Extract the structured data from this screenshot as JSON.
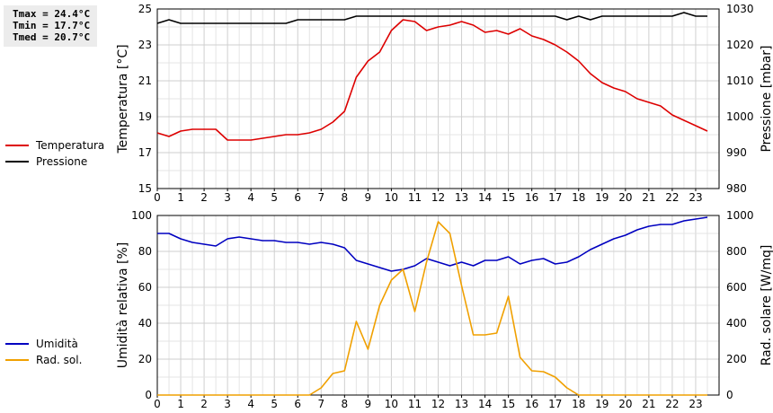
{
  "stats": {
    "tmax": "Tmax = 24.4°C",
    "tmin": "Tmin = 17.7°C",
    "tmed": "Tmed = 20.7°C"
  },
  "legend_top": [
    {
      "label": "Temperatura",
      "color": "#dd0000"
    },
    {
      "label": "Pressione",
      "color": "#000000"
    }
  ],
  "legend_bottom": [
    {
      "label": "Umidità",
      "color": "#0000c0"
    },
    {
      "label": "Rad. sol.",
      "color": "#f0a000"
    }
  ],
  "chart_data": [
    {
      "type": "line",
      "ylabel_left": "Temperatura [°C]",
      "ylabel_right": "Pressione [mbar]",
      "xlim": [
        0,
        24
      ],
      "ylim_left": [
        15,
        25
      ],
      "ylim_right": [
        980,
        1030
      ],
      "x_ticks": [
        "0",
        "1",
        "2",
        "3",
        "4",
        "5",
        "6",
        "7",
        "8",
        "9",
        "10",
        "11",
        "12",
        "13",
        "14",
        "15",
        "16",
        "17",
        "18",
        "19",
        "20",
        "21",
        "22",
        "23"
      ],
      "y_ticks_left": [
        "15",
        "17",
        "19",
        "21",
        "23",
        "25"
      ],
      "y_ticks_right": [
        "980",
        "990",
        "1000",
        "1010",
        "1020",
        "1030"
      ],
      "grid": true,
      "series": [
        {
          "name": "Temperatura",
          "axis": "left",
          "color": "#dd0000",
          "x": [
            0,
            0.5,
            1,
            1.5,
            2,
            2.5,
            3,
            3.5,
            4,
            4.5,
            5,
            5.5,
            6,
            6.5,
            7,
            7.5,
            8,
            8.5,
            9,
            9.5,
            10,
            10.5,
            11,
            11.5,
            12,
            12.5,
            13,
            13.5,
            14,
            14.5,
            15,
            15.5,
            16,
            16.5,
            17,
            17.5,
            18,
            18.5,
            19,
            19.5,
            20,
            20.5,
            21,
            21.5,
            22,
            22.5,
            23,
            23.5
          ],
          "values": [
            18.1,
            17.9,
            18.2,
            18.3,
            18.3,
            18.3,
            17.7,
            17.7,
            17.7,
            17.8,
            17.9,
            18.0,
            18.0,
            18.1,
            18.3,
            18.7,
            19.3,
            21.2,
            22.1,
            22.6,
            23.8,
            24.4,
            24.3,
            23.8,
            24.0,
            24.1,
            24.3,
            24.1,
            23.7,
            23.8,
            23.6,
            23.9,
            23.5,
            23.3,
            23.0,
            22.6,
            22.1,
            21.4,
            20.9,
            20.6,
            20.4,
            20.0,
            19.8,
            19.6,
            19.1,
            18.8,
            18.5,
            18.2
          ]
        },
        {
          "name": "Pressione",
          "axis": "right",
          "color": "#000000",
          "x": [
            0,
            0.5,
            1,
            1.5,
            2,
            2.5,
            3,
            3.5,
            4,
            4.5,
            5,
            5.5,
            6,
            6.5,
            7,
            7.5,
            8,
            8.5,
            9,
            9.5,
            10,
            10.5,
            11,
            11.5,
            12,
            12.5,
            13,
            13.5,
            14,
            14.5,
            15,
            15.5,
            16,
            16.5,
            17,
            17.5,
            18,
            18.5,
            19,
            19.5,
            20,
            20.5,
            21,
            21.5,
            22,
            22.5,
            23,
            23.5
          ],
          "values": [
            1026,
            1027,
            1026,
            1026,
            1026,
            1026,
            1026,
            1026,
            1026,
            1026,
            1026,
            1026,
            1027,
            1027,
            1027,
            1027,
            1027,
            1028,
            1028,
            1028,
            1028,
            1028,
            1028,
            1028,
            1028,
            1028,
            1028,
            1028,
            1028,
            1028,
            1028,
            1028,
            1028,
            1028,
            1028,
            1027,
            1028,
            1027,
            1028,
            1028,
            1028,
            1028,
            1028,
            1028,
            1028,
            1029,
            1028,
            1028
          ]
        }
      ]
    },
    {
      "type": "line",
      "ylabel_left": "Umidità relativa [%]",
      "ylabel_right": "Rad. solare [W/mq]",
      "xlim": [
        0,
        24
      ],
      "ylim_left": [
        0,
        100
      ],
      "ylim_right": [
        0,
        1000
      ],
      "x_ticks": [
        "0",
        "1",
        "2",
        "3",
        "4",
        "5",
        "6",
        "7",
        "8",
        "9",
        "10",
        "11",
        "12",
        "13",
        "14",
        "15",
        "16",
        "17",
        "18",
        "19",
        "20",
        "21",
        "22",
        "23"
      ],
      "y_ticks_left": [
        "0",
        "20",
        "40",
        "60",
        "80",
        "100"
      ],
      "y_ticks_right": [
        "0",
        "200",
        "400",
        "600",
        "800",
        "1000"
      ],
      "grid": true,
      "series": [
        {
          "name": "Umidità",
          "axis": "left",
          "color": "#0000c0",
          "x": [
            0,
            0.5,
            1,
            1.5,
            2,
            2.5,
            3,
            3.5,
            4,
            4.5,
            5,
            5.5,
            6,
            6.5,
            7,
            7.5,
            8,
            8.5,
            9,
            9.5,
            10,
            10.5,
            11,
            11.5,
            12,
            12.5,
            13,
            13.5,
            14,
            14.5,
            15,
            15.5,
            16,
            16.5,
            17,
            17.5,
            18,
            18.5,
            19,
            19.5,
            20,
            20.5,
            21,
            21.5,
            22,
            22.5,
            23,
            23.5
          ],
          "values": [
            90,
            90,
            87,
            85,
            84,
            83,
            87,
            88,
            87,
            86,
            86,
            85,
            85,
            84,
            85,
            84,
            82,
            75,
            73,
            71,
            69,
            70,
            72,
            76,
            74,
            72,
            74,
            72,
            75,
            75,
            77,
            73,
            75,
            76,
            73,
            74,
            77,
            81,
            84,
            87,
            89,
            92,
            94,
            95,
            95,
            97,
            98,
            99
          ]
        },
        {
          "name": "Rad. sol.",
          "axis": "right",
          "color": "#f0a000",
          "x": [
            0,
            0.5,
            1,
            1.5,
            2,
            2.5,
            3,
            3.5,
            4,
            4.5,
            5,
            5.5,
            6,
            6.5,
            7,
            7.5,
            8,
            8.5,
            9,
            9.5,
            10,
            10.5,
            11,
            11.5,
            12,
            12.5,
            13,
            13.5,
            14,
            14.5,
            15,
            15.5,
            16,
            16.5,
            17,
            17.5,
            18,
            18.5,
            19,
            19.5,
            20,
            20.5,
            21,
            21.5,
            22,
            22.5,
            23,
            23.5
          ],
          "values": [
            0,
            0,
            0,
            0,
            0,
            0,
            0,
            0,
            0,
            0,
            0,
            0,
            0,
            0,
            40,
            120,
            135,
            410,
            255,
            500,
            640,
            700,
            465,
            740,
            965,
            900,
            610,
            335,
            335,
            345,
            550,
            210,
            135,
            130,
            100,
            40,
            0,
            0,
            0,
            0,
            0,
            0,
            0,
            0,
            0,
            0,
            0,
            0
          ]
        }
      ]
    }
  ]
}
